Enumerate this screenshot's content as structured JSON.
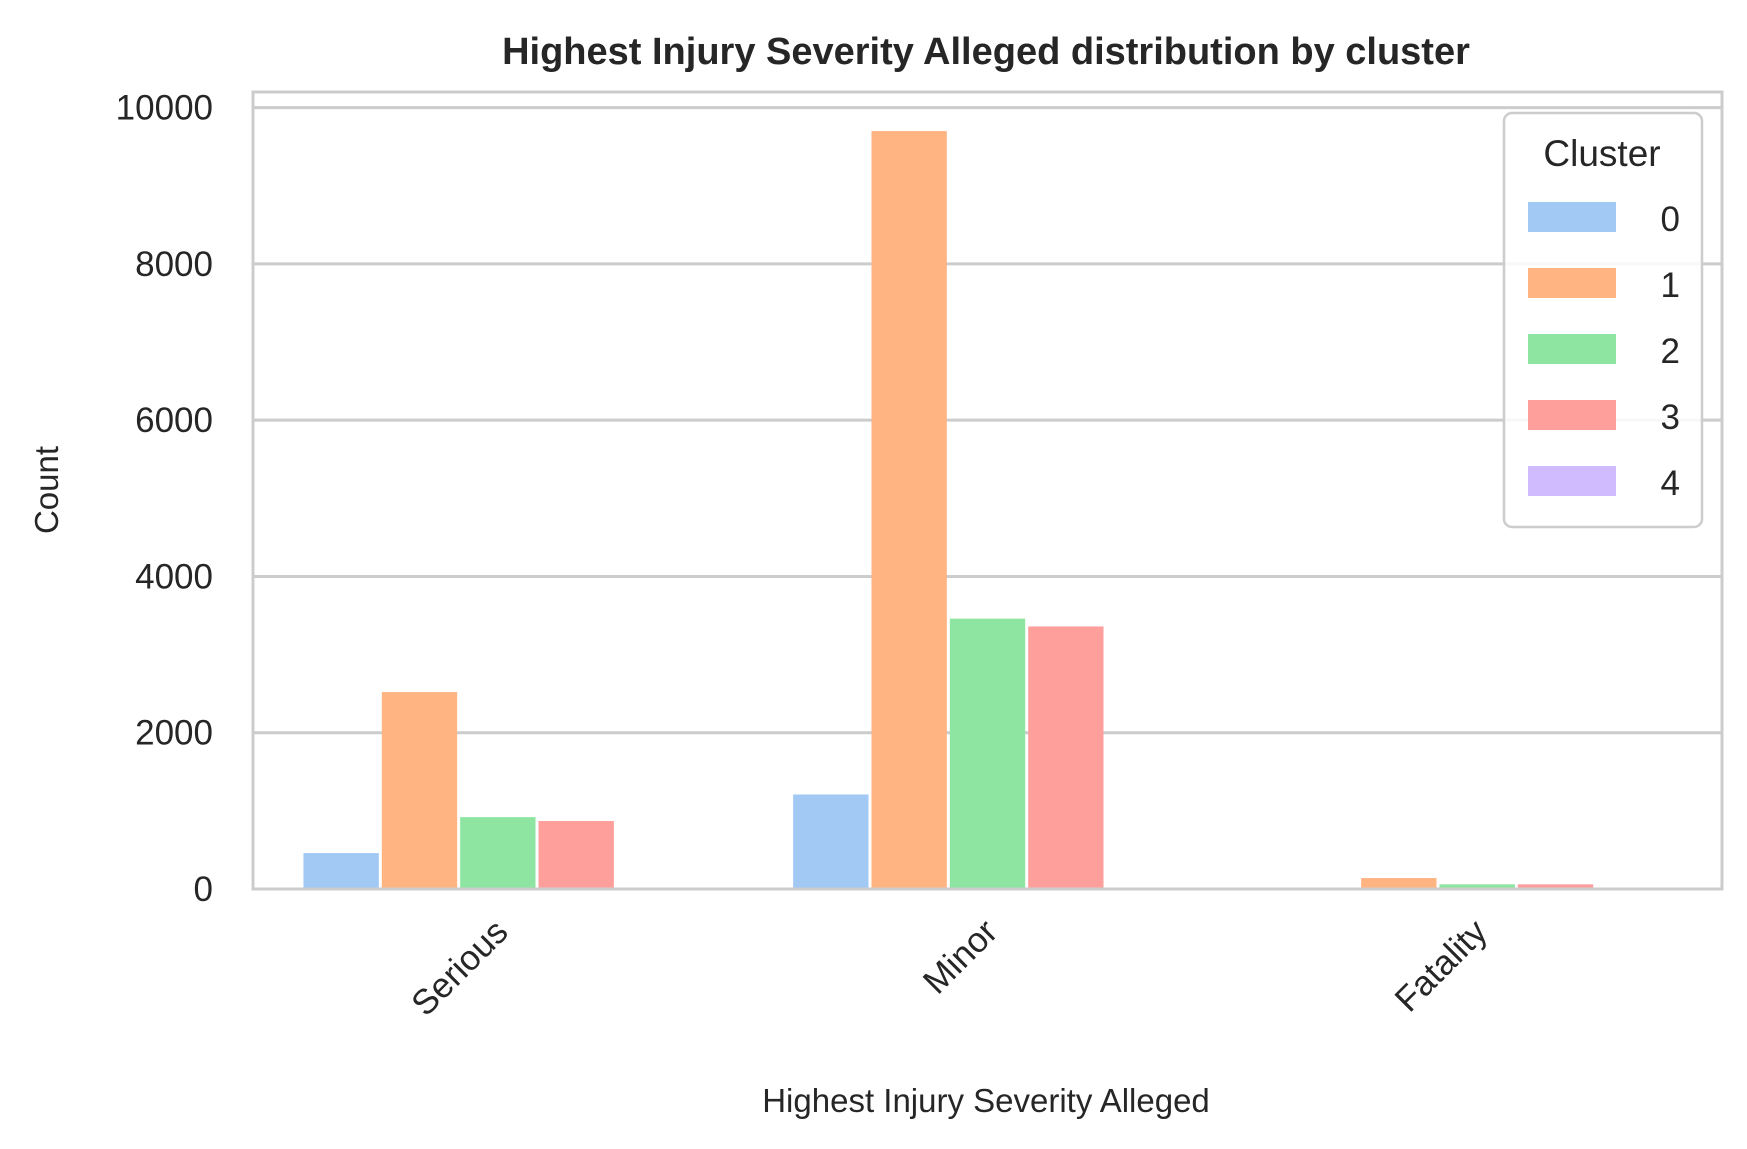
{
  "chart_data": {
    "type": "bar",
    "title": "Highest Injury Severity Alleged distribution by cluster",
    "xlabel": "Highest Injury Severity Alleged",
    "ylabel": "Count",
    "categories": [
      "Serious",
      "Minor",
      "Fatality"
    ],
    "ylim": [
      0,
      10200
    ],
    "yticks": [
      0,
      2000,
      4000,
      6000,
      8000,
      10000
    ],
    "grid": true,
    "legend": {
      "title": "Cluster",
      "placement": "top-right"
    },
    "series": [
      {
        "name": "0",
        "color": "#a1c9f4",
        "values": [
          460,
          1210,
          10
        ]
      },
      {
        "name": "1",
        "color": "#ffb482",
        "values": [
          2520,
          9700,
          140
        ]
      },
      {
        "name": "2",
        "color": "#8de5a1",
        "values": [
          920,
          3460,
          60
        ]
      },
      {
        "name": "3",
        "color": "#ff9f9b",
        "values": [
          870,
          3360,
          60
        ]
      },
      {
        "name": "4",
        "color": "#d0bbff",
        "values": [
          0,
          0,
          0
        ]
      }
    ]
  }
}
